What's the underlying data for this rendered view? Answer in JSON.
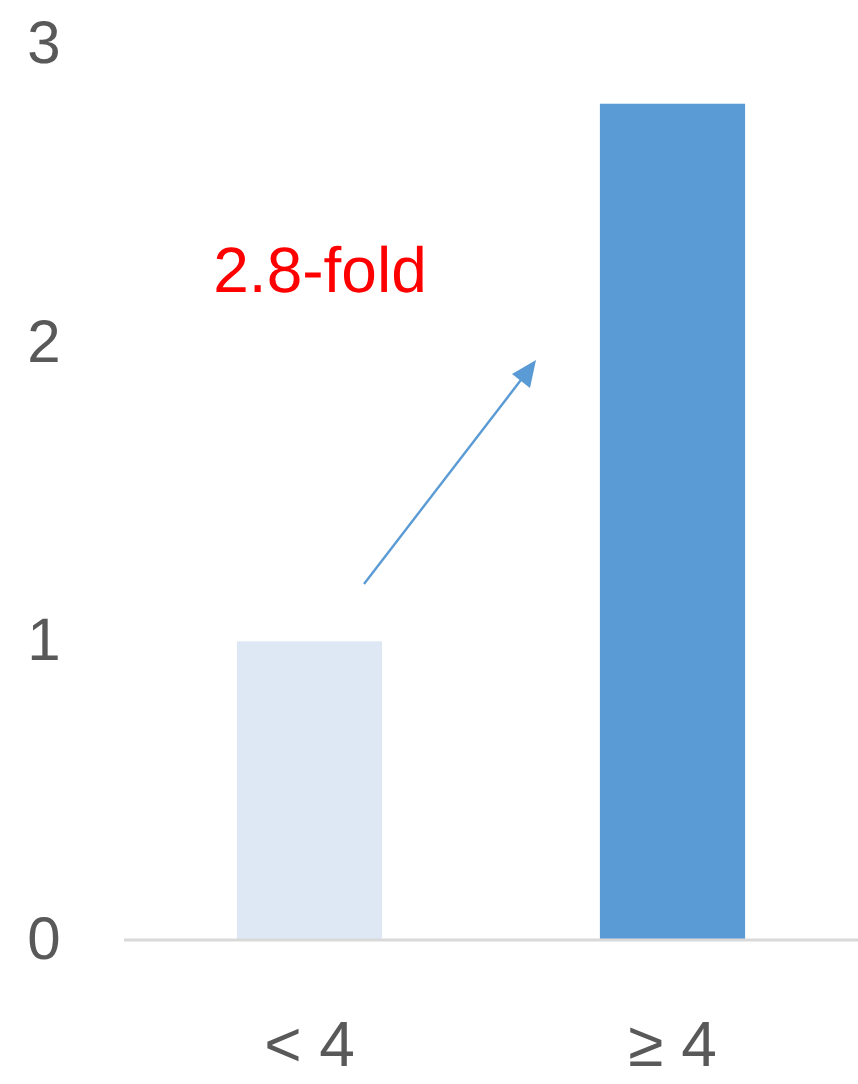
{
  "chart_data": {
    "type": "bar",
    "categories": [
      "< 4",
      "≥ 4"
    ],
    "values": [
      1,
      2.8
    ],
    "colors": [
      "#dee8f4",
      "#5b9bd5"
    ],
    "ylim": [
      0,
      3
    ],
    "yticks": [
      0,
      1,
      2,
      3
    ],
    "annotations": [
      "2.8-fold"
    ]
  }
}
